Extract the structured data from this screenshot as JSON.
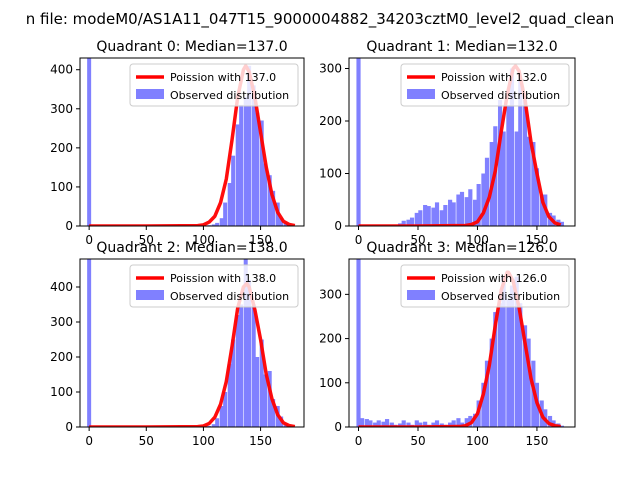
{
  "suptitle": "n file: modeM0/AS1A11_047T15_9000004882_34203cztM0_level2_quad_clean",
  "colors": {
    "bar": "#8080ff",
    "fit_line": "#ff0000",
    "axes": "#000000",
    "background": "#ffffff"
  },
  "chart_data": [
    {
      "type": "bar",
      "title": "Quadrant 0: Median=137.0",
      "xlabel": "",
      "ylabel": "",
      "xlim": [
        -8,
        188
      ],
      "ylim": [
        0,
        430
      ],
      "xticks": [
        0,
        50,
        100,
        150
      ],
      "yticks": [
        0,
        100,
        200,
        300,
        400
      ],
      "grid": false,
      "legend_position": "upper right",
      "legend": [
        "Poission with 137.0",
        "Observed distribution"
      ],
      "bin_width": 3.5,
      "series": [
        {
          "name": "Observed distribution",
          "kind": "histogram",
          "x": [
            0,
            105,
            109,
            112,
            116,
            119,
            123,
            126,
            130,
            133,
            137,
            140,
            144,
            147,
            151,
            154,
            158,
            161,
            165,
            168,
            172,
            175
          ],
          "values": [
            430,
            2,
            4,
            8,
            20,
            60,
            110,
            180,
            260,
            310,
            330,
            410,
            360,
            290,
            270,
            160,
            130,
            90,
            60,
            20,
            8,
            3
          ]
        },
        {
          "name": "Poission with 137.0",
          "kind": "line",
          "x": [
            0,
            50,
            95,
            100,
            105,
            110,
            115,
            120,
            125,
            130,
            135,
            137,
            140,
            145,
            150,
            155,
            160,
            165,
            170,
            175,
            180
          ],
          "values": [
            0,
            0,
            1,
            3,
            10,
            25,
            60,
            120,
            220,
            330,
            400,
            410,
            395,
            330,
            240,
            150,
            80,
            35,
            12,
            4,
            1
          ]
        }
      ]
    },
    {
      "type": "bar",
      "title": "Quadrant 1: Median=132.0",
      "xlabel": "",
      "ylabel": "",
      "xlim": [
        -8,
        182
      ],
      "ylim": [
        0,
        320
      ],
      "xticks": [
        0,
        50,
        100,
        150
      ],
      "yticks": [
        0,
        100,
        200,
        300
      ],
      "grid": false,
      "legend_position": "upper right",
      "legend": [
        "Poission with 132.0",
        "Observed distribution"
      ],
      "bin_width": 3.5,
      "series": [
        {
          "name": "Observed distribution",
          "kind": "histogram",
          "x": [
            0,
            35,
            38,
            42,
            45,
            49,
            52,
            56,
            59,
            63,
            66,
            70,
            73,
            77,
            80,
            84,
            87,
            91,
            94,
            98,
            101,
            105,
            108,
            112,
            115,
            119,
            122,
            126,
            129,
            133,
            136,
            140,
            143,
            147,
            150,
            154,
            157,
            161,
            164,
            168,
            171
          ],
          "values": [
            320,
            5,
            10,
            12,
            16,
            25,
            30,
            40,
            38,
            35,
            45,
            30,
            40,
            50,
            45,
            60,
            65,
            55,
            70,
            50,
            80,
            100,
            130,
            160,
            190,
            240,
            180,
            230,
            300,
            180,
            280,
            240,
            170,
            160,
            110,
            60,
            60,
            25,
            20,
            12,
            8
          ]
        },
        {
          "name": "Poission with 132.0",
          "kind": "line",
          "x": [
            0,
            50,
            90,
            95,
            100,
            105,
            110,
            115,
            120,
            125,
            130,
            132,
            135,
            140,
            145,
            150,
            155,
            160,
            165,
            170
          ],
          "values": [
            0,
            0,
            1,
            3,
            8,
            25,
            55,
            105,
            180,
            250,
            300,
            305,
            295,
            240,
            160,
            100,
            45,
            18,
            6,
            2
          ]
        }
      ]
    },
    {
      "type": "bar",
      "title": "Quadrant 2: Median=138.0",
      "xlabel": "",
      "ylabel": "",
      "xlim": [
        -8,
        188
      ],
      "ylim": [
        0,
        480
      ],
      "xticks": [
        0,
        50,
        100,
        150
      ],
      "yticks": [
        0,
        100,
        200,
        300,
        400
      ],
      "grid": false,
      "legend_position": "upper right",
      "legend": [
        "Poission with 138.0",
        "Observed distribution"
      ],
      "bin_width": 3.5,
      "series": [
        {
          "name": "Observed distribution",
          "kind": "histogram",
          "x": [
            0,
            105,
            109,
            112,
            116,
            119,
            123,
            126,
            130,
            133,
            137,
            140,
            144,
            147,
            151,
            154,
            158,
            161,
            165,
            168,
            172,
            175
          ],
          "values": [
            480,
            3,
            8,
            25,
            60,
            100,
            180,
            250,
            320,
            350,
            480,
            420,
            350,
            200,
            250,
            150,
            160,
            80,
            60,
            30,
            10,
            4
          ]
        },
        {
          "name": "Poission with 138.0",
          "kind": "line",
          "x": [
            0,
            50,
            95,
            100,
            105,
            110,
            115,
            120,
            125,
            130,
            135,
            138,
            140,
            145,
            150,
            155,
            160,
            165,
            170,
            175,
            180
          ],
          "values": [
            0,
            0,
            1,
            3,
            10,
            28,
            65,
            130,
            230,
            340,
            400,
            410,
            400,
            335,
            250,
            150,
            80,
            35,
            12,
            4,
            1
          ]
        }
      ]
    },
    {
      "type": "bar",
      "title": "Quadrant 3: Median=126.0",
      "xlabel": "",
      "ylabel": "",
      "xlim": [
        -8,
        182
      ],
      "ylim": [
        0,
        380
      ],
      "xticks": [
        0,
        50,
        100,
        150
      ],
      "yticks": [
        0,
        100,
        200,
        300
      ],
      "grid": false,
      "legend_position": "upper right",
      "legend": [
        "Poission with 126.0",
        "Observed distribution"
      ],
      "bin_width": 3.5,
      "series": [
        {
          "name": "Observed distribution",
          "kind": "histogram",
          "x": [
            0,
            3,
            7,
            10,
            14,
            17,
            21,
            24,
            28,
            31,
            35,
            38,
            42,
            45,
            49,
            52,
            56,
            59,
            63,
            66,
            70,
            73,
            77,
            80,
            84,
            87,
            91,
            94,
            98,
            101,
            105,
            108,
            112,
            115,
            119,
            122,
            126,
            129,
            133,
            136,
            140,
            143,
            147,
            150,
            154,
            157,
            161,
            164,
            168,
            171
          ],
          "values": [
            380,
            20,
            18,
            15,
            10,
            15,
            12,
            18,
            10,
            5,
            8,
            15,
            10,
            5,
            15,
            10,
            12,
            5,
            10,
            15,
            8,
            5,
            10,
            15,
            20,
            10,
            20,
            25,
            30,
            60,
            100,
            150,
            200,
            260,
            280,
            340,
            290,
            320,
            340,
            280,
            230,
            200,
            150,
            100,
            60,
            40,
            25,
            15,
            8,
            3
          ]
        },
        {
          "name": "Poission with 126.0",
          "kind": "line",
          "x": [
            0,
            50,
            85,
            90,
            95,
            100,
            105,
            110,
            115,
            120,
            125,
            126,
            130,
            135,
            140,
            145,
            150,
            155,
            160,
            165,
            170
          ],
          "values": [
            0,
            0,
            1,
            3,
            10,
            30,
            75,
            140,
            230,
            310,
            350,
            350,
            330,
            270,
            190,
            110,
            55,
            22,
            8,
            3,
            1
          ]
        }
      ]
    }
  ]
}
